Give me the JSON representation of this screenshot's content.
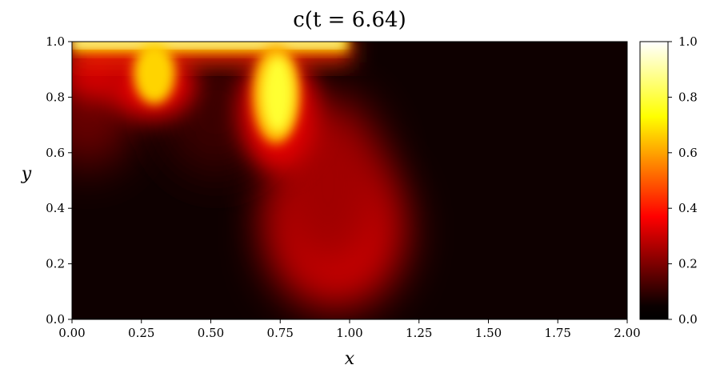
{
  "chart_data": {
    "type": "heatmap",
    "title": "c(t = 6.64)",
    "xlabel": "x",
    "ylabel": "y",
    "xlim": [
      0.0,
      2.0
    ],
    "ylim": [
      0.0,
      1.0
    ],
    "x_ticks": [
      "0.00",
      "0.25",
      "0.50",
      "0.75",
      "1.00",
      "1.25",
      "1.50",
      "1.75",
      "2.00"
    ],
    "y_ticks": [
      "0.0",
      "0.2",
      "0.4",
      "0.6",
      "0.8",
      "1.0"
    ],
    "colorbar": {
      "colormap": "hot",
      "range": [
        0.0,
        1.0
      ],
      "ticks": [
        "0.0",
        "0.2",
        "0.4",
        "0.6",
        "0.8",
        "1.0"
      ]
    },
    "grid": false,
    "features": [
      {
        "description": "high concentration band along top boundary",
        "x_range": [
          0.0,
          1.02
        ],
        "y": 1.0,
        "value": 1.0
      },
      {
        "description": "finger plume",
        "x": 0.28,
        "y_tip": 0.74,
        "peak_value": 0.9
      },
      {
        "description": "finger plume",
        "x": 0.75,
        "y_tip": 0.62,
        "peak_value": 0.85
      },
      {
        "description": "diffuse blob",
        "x": 0.95,
        "y": 0.28,
        "peak_value": 0.45
      },
      {
        "description": "background",
        "region": "x > 1.1",
        "value": 0.0
      }
    ]
  }
}
